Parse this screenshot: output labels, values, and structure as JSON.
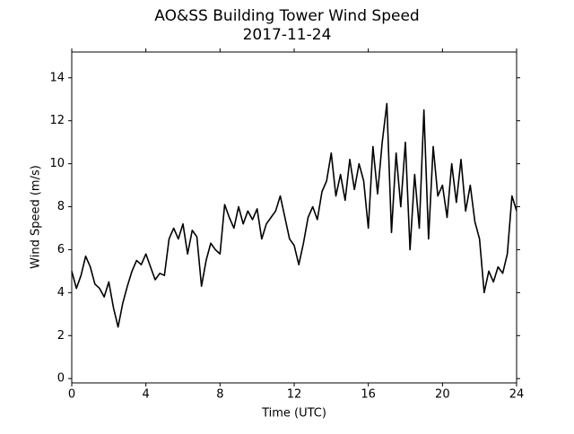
{
  "chart_data": {
    "type": "line",
    "title": "AO&SS Building Tower Wind Speed",
    "subtitle": "2017-11-24",
    "x_label": "Time (UTC)",
    "y_label": "Wind Speed (m/s)",
    "xlim": [
      0,
      24
    ],
    "xticks": [
      0,
      4,
      8,
      12,
      16,
      20,
      24
    ],
    "ylim": [
      -0.2,
      15.2
    ],
    "yticks": [
      0,
      2,
      4,
      6,
      8,
      10,
      12,
      14
    ],
    "x": [
      0,
      0.25,
      0.5,
      0.75,
      1,
      1.25,
      1.5,
      1.75,
      2,
      2.25,
      2.5,
      2.75,
      3,
      3.25,
      3.5,
      3.75,
      4,
      4.25,
      4.5,
      4.75,
      5,
      5.25,
      5.5,
      5.75,
      6,
      6.25,
      6.5,
      6.75,
      7,
      7.25,
      7.5,
      7.75,
      8,
      8.25,
      8.5,
      8.75,
      9,
      9.25,
      9.5,
      9.75,
      10,
      10.25,
      10.5,
      10.75,
      11,
      11.25,
      11.5,
      11.75,
      12,
      12.25,
      12.5,
      12.75,
      13,
      13.25,
      13.5,
      13.75,
      14,
      14.25,
      14.5,
      14.75,
      15,
      15.25,
      15.5,
      15.75,
      16,
      16.25,
      16.5,
      16.75,
      17,
      17.25,
      17.5,
      17.75,
      18,
      18.25,
      18.5,
      18.75,
      19,
      19.25,
      19.5,
      19.75,
      20,
      20.25,
      20.5,
      20.75,
      21,
      21.25,
      21.5,
      21.75,
      22,
      22.25,
      22.5,
      22.75,
      23,
      23.25,
      23.5,
      23.75,
      24
    ],
    "series": [
      {
        "name": "Wind Speed",
        "color": "#000000",
        "values": [
          5.0,
          4.2,
          4.8,
          5.7,
          5.2,
          4.4,
          4.2,
          3.8,
          4.5,
          3.3,
          2.4,
          3.5,
          4.3,
          5.0,
          5.5,
          5.3,
          5.8,
          5.2,
          4.6,
          4.9,
          4.8,
          6.5,
          7.0,
          6.5,
          7.2,
          5.8,
          6.9,
          6.6,
          4.3,
          5.5,
          6.3,
          6.0,
          5.8,
          8.1,
          7.5,
          7.0,
          8.0,
          7.2,
          7.8,
          7.4,
          7.9,
          6.5,
          7.2,
          7.5,
          7.8,
          8.5,
          7.5,
          6.5,
          6.2,
          5.3,
          6.3,
          7.5,
          8.0,
          7.4,
          8.7,
          9.2,
          10.5,
          8.5,
          9.5,
          8.3,
          10.2,
          8.8,
          10.0,
          9.2,
          7.0,
          10.8,
          8.6,
          11.0,
          12.8,
          6.8,
          10.5,
          8.0,
          11.0,
          6.0,
          9.5,
          7.0,
          12.5,
          6.5,
          10.8,
          8.5,
          9.0,
          7.5,
          10.0,
          8.2,
          10.2,
          7.8,
          9.0,
          7.3,
          6.5,
          4.0,
          5.0,
          4.5,
          5.2,
          4.9,
          5.8,
          8.5,
          7.8
        ]
      }
    ]
  }
}
